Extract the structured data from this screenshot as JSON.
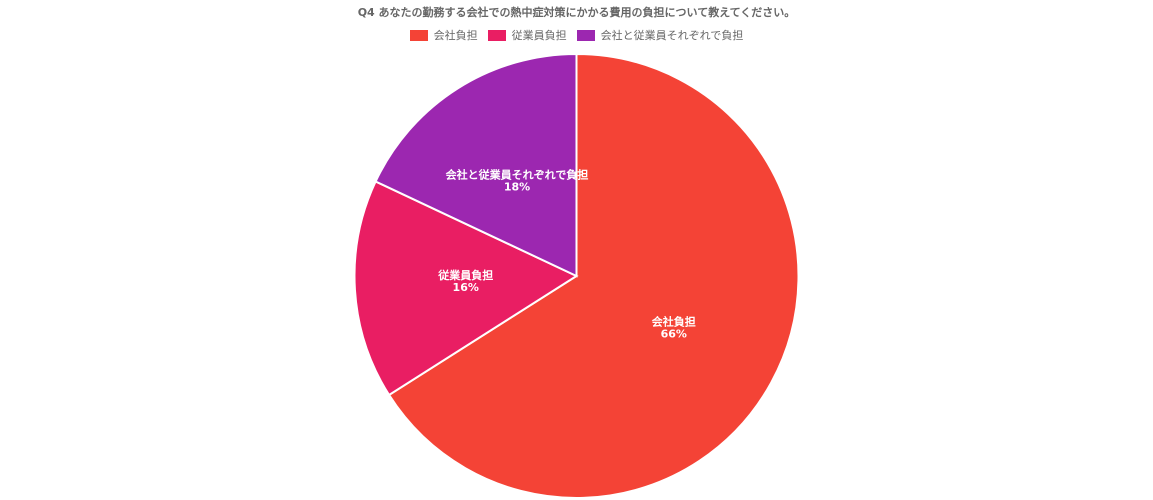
{
  "chart_data": {
    "type": "pie",
    "title": "Q4 あなたの勤務する会社での熱中症対策にかかる費用の負担について教えてください。",
    "categories": [
      "会社負担",
      "従業員負担",
      "会社と従業員それぞれで負担"
    ],
    "values": [
      66,
      16,
      18
    ],
    "value_labels": [
      "66%",
      "16%",
      "18%"
    ],
    "colors": [
      "#f44336",
      "#e91e63",
      "#9c27b0"
    ],
    "legend_position": "top"
  }
}
